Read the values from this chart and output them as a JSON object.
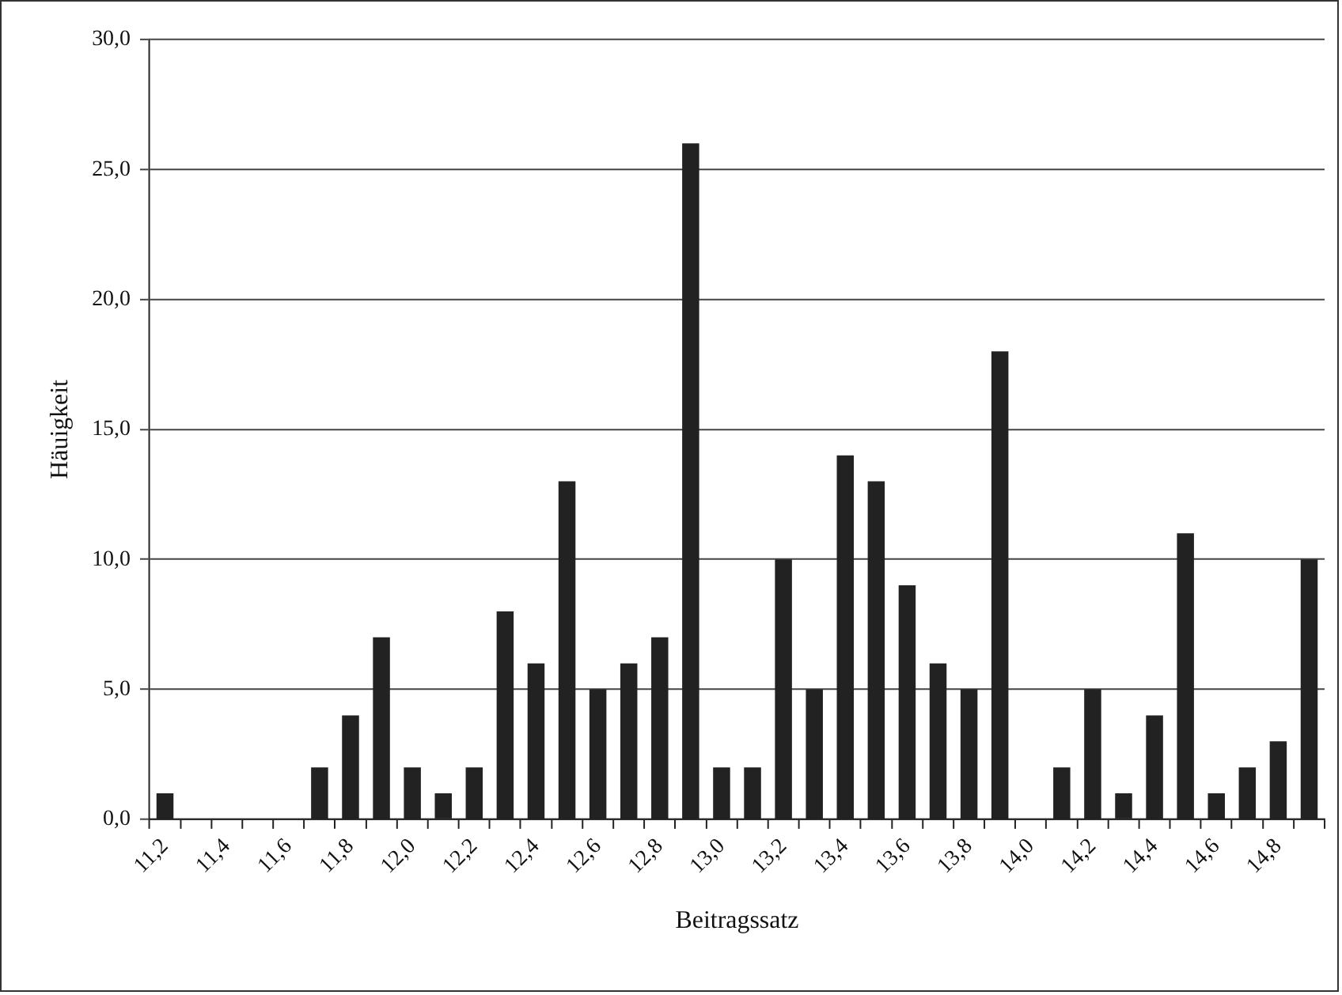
{
  "chart_data": {
    "type": "bar",
    "xlabel": "Beitragssatz",
    "ylabel": "Häuigkeit",
    "categories": [
      "11,2",
      null,
      "11,4",
      null,
      "11,6",
      null,
      "11,8",
      null,
      "12,0",
      null,
      "12,2",
      null,
      "12,4",
      null,
      "12,6",
      null,
      "12,8",
      null,
      "13,0",
      null,
      "13,2",
      null,
      "13,4",
      null,
      "13,6",
      null,
      "13,8",
      null,
      "14,0",
      null,
      "14,2",
      null,
      "14,4",
      null,
      "14,6",
      null,
      "14,8",
      null
    ],
    "values": [
      1,
      0,
      0,
      0,
      0,
      2,
      4,
      7,
      2,
      1,
      2,
      8,
      6,
      13,
      5,
      6,
      7,
      26,
      2,
      2,
      10,
      5,
      14,
      13,
      9,
      6,
      5,
      18,
      0,
      2,
      5,
      1,
      4,
      11,
      1,
      2,
      3,
      10
    ],
    "color": "#222222",
    "ylim": [
      0,
      30
    ],
    "yticks": [
      {
        "value": 0,
        "label": "0,0"
      },
      {
        "value": 5,
        "label": "5,0"
      },
      {
        "value": 10,
        "label": "10,0"
      },
      {
        "value": 15,
        "label": "15,0"
      },
      {
        "value": 20,
        "label": "20,0"
      },
      {
        "value": 25,
        "label": "25,0"
      },
      {
        "value": 30,
        "label": "30,0"
      }
    ],
    "grid": "y",
    "legend": false
  }
}
